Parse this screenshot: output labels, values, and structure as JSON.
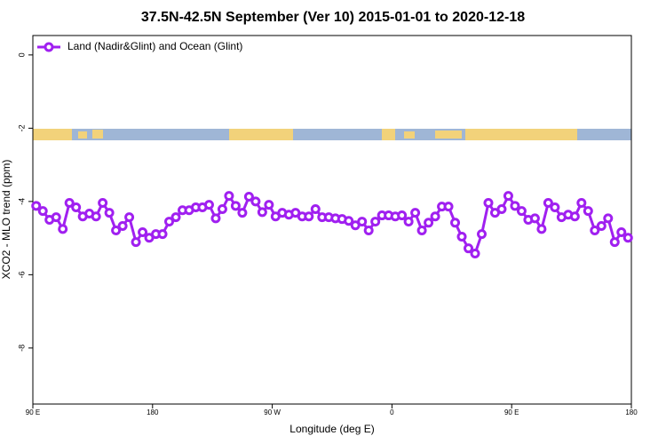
{
  "chart_data": {
    "type": "line",
    "title": "37.5N-42.5N September (Ver 10)   2015-01-01 to 2020-12-18",
    "x_label": "Longitude (deg E)",
    "y_label": "XCO2 - MLO trend (ppm)",
    "xlim": [
      90,
      540
    ],
    "ylim": [
      -9.53,
      0.53
    ],
    "xticks": [
      {
        "value": 90,
        "label": "90 E"
      },
      {
        "value": 180,
        "label": "180"
      },
      {
        "value": 270,
        "label": "90 W"
      },
      {
        "value": 360,
        "label": "0"
      },
      {
        "value": 450,
        "label": "90 E"
      },
      {
        "value": 540,
        "label": "180"
      }
    ],
    "yticks": [
      0,
      -2,
      -4,
      -6,
      -8
    ],
    "legend": "top-left",
    "x": [
      92.5,
      97.5,
      102.5,
      107.5,
      112.5,
      117.5,
      122.5,
      127.5,
      132.5,
      137.5,
      142.5,
      147.5,
      152.5,
      157.5,
      162.5,
      167.5,
      172.5,
      177.5,
      182.5,
      187.5,
      192.5,
      197.5,
      202.5,
      207.5,
      212.5,
      217.5,
      222.5,
      227.5,
      232.5,
      237.5,
      242.5,
      247.5,
      252.5,
      257.5,
      262.5,
      267.5,
      272.5,
      277.5,
      282.5,
      287.5,
      292.5,
      297.5,
      302.5,
      307.5,
      312.5,
      317.5,
      322.5,
      327.5,
      332.5,
      337.5,
      342.5,
      347.5,
      352.5,
      357.5,
      362.5,
      367.5,
      372.5,
      377.5,
      382.5,
      387.5,
      392.5,
      397.5,
      402.5,
      407.5,
      412.5,
      417.5,
      422.5,
      427.5,
      432.5,
      437.5,
      442.5,
      447.5,
      452.5,
      457.5,
      462.5,
      467.5,
      472.5,
      477.5,
      482.5,
      487.5,
      492.5,
      497.5,
      502.5,
      507.5,
      512.5,
      517.5,
      522.5,
      527.5,
      532.5,
      537.5
    ],
    "series": [
      {
        "name": "Land (Nadir&Glint) and Ocean (Glint)",
        "color": "#a020f0",
        "values": [
          -4.12,
          -4.26,
          -4.5,
          -4.43,
          -4.75,
          -4.04,
          -4.16,
          -4.41,
          -4.33,
          -4.41,
          -4.04,
          -4.31,
          -4.79,
          -4.67,
          -4.43,
          -5.11,
          -4.84,
          -4.99,
          -4.89,
          -4.89,
          -4.55,
          -4.43,
          -4.24,
          -4.24,
          -4.16,
          -4.16,
          -4.09,
          -4.46,
          -4.21,
          -3.85,
          -4.12,
          -4.31,
          -3.87,
          -4.0,
          -4.29,
          -4.09,
          -4.41,
          -4.31,
          -4.36,
          -4.31,
          -4.41,
          -4.41,
          -4.21,
          -4.43,
          -4.43,
          -4.46,
          -4.48,
          -4.53,
          -4.65,
          -4.55,
          -4.79,
          -4.55,
          -4.38,
          -4.38,
          -4.41,
          -4.38,
          -4.55,
          -4.31,
          -4.79,
          -4.58,
          -4.41,
          -4.14,
          -4.14,
          -4.58,
          -4.96,
          -5.28,
          -5.42,
          -4.89,
          -4.04,
          -4.31,
          -4.21,
          -3.85,
          -4.12,
          -4.26,
          -4.5,
          -4.46,
          -4.75,
          -4.04,
          -4.16,
          -4.43,
          -4.36,
          -4.41,
          -4.04,
          -4.26,
          -4.79,
          -4.67,
          -4.46,
          -5.11,
          -4.84,
          -4.99
        ]
      }
    ]
  }
}
